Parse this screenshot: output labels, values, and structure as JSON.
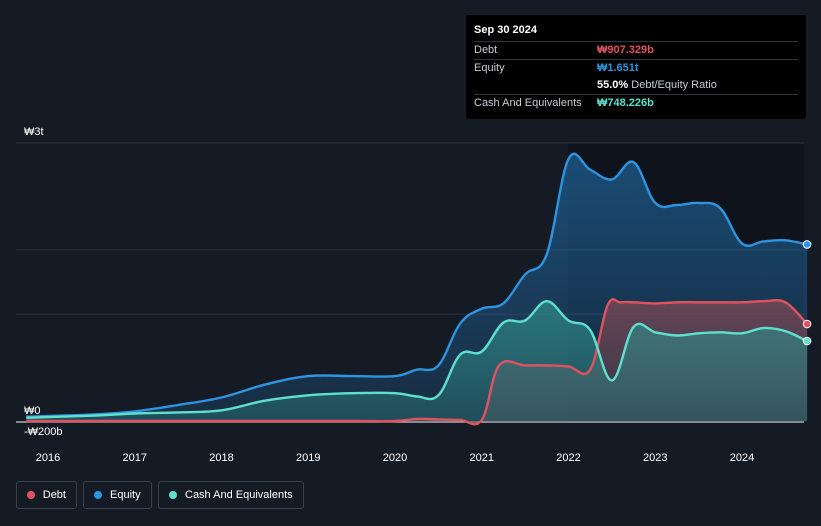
{
  "colors": {
    "debt": "#e0525e",
    "equity": "#2c94e0",
    "cash": "#5fe0cf",
    "grid": "#2f3540",
    "plot_bg": "#0f141c"
  },
  "tooltip": {
    "date": "Sep 30 2024",
    "debt_label": "Debt",
    "debt_value": "₩907.329b",
    "equity_label": "Equity",
    "equity_value": "₩1.651t",
    "ratio_value": "55.0%",
    "ratio_label": "Debt/Equity Ratio",
    "cash_label": "Cash And Equivalents",
    "cash_value": "₩748.226b"
  },
  "legend": [
    {
      "label": "Debt",
      "color": "#e0525e"
    },
    {
      "label": "Equity",
      "color": "#2c94e0"
    },
    {
      "label": "Cash And Equivalents",
      "color": "#5fe0cf"
    }
  ],
  "chart_data": {
    "type": "area",
    "title": "",
    "xlabel": "",
    "ylabel": "",
    "unit": "₩b",
    "ylim": [
      -200,
      2600
    ],
    "y_tick_labels": [
      {
        "value": 2600,
        "label": "₩3t"
      },
      {
        "value": 0,
        "label": "₩0"
      },
      {
        "value": -200,
        "label": "-₩200b"
      }
    ],
    "x_ticks": [
      "2016",
      "2017",
      "2018",
      "2019",
      "2020",
      "2021",
      "2022",
      "2023",
      "2024"
    ],
    "x_tick_values": [
      2016,
      2017,
      2018,
      2019,
      2020,
      2021,
      2022,
      2023,
      2024
    ],
    "grid": true,
    "series": [
      {
        "name": "Debt",
        "color": "#e0525e",
        "x": [
          2015.75,
          2016.5,
          2017.5,
          2018.5,
          2019.5,
          2020.0,
          2020.25,
          2020.5,
          2020.75,
          2021.0,
          2021.2,
          2021.5,
          2021.75,
          2022.0,
          2022.25,
          2022.45,
          2022.6,
          2022.75,
          2023.0,
          2023.25,
          2023.5,
          2023.75,
          2024.0,
          2024.25,
          2024.5,
          2024.75
        ],
        "values": [
          0,
          0,
          0,
          0,
          0,
          0,
          20,
          15,
          10,
          10,
          520,
          520,
          520,
          510,
          480,
          1080,
          1110,
          1110,
          1100,
          1110,
          1110,
          1110,
          1110,
          1120,
          1110,
          907
        ]
      },
      {
        "name": "Equity",
        "color": "#2c94e0",
        "x": [
          2015.75,
          2016.5,
          2017.0,
          2017.5,
          2018.0,
          2018.5,
          2019.0,
          2019.5,
          2020.0,
          2020.25,
          2020.5,
          2020.75,
          2021.0,
          2021.25,
          2021.5,
          2021.75,
          2022.0,
          2022.25,
          2022.5,
          2022.75,
          2023.0,
          2023.25,
          2023.5,
          2023.75,
          2024.0,
          2024.25,
          2024.5,
          2024.75
        ],
        "values": [
          40,
          60,
          90,
          150,
          220,
          340,
          420,
          420,
          420,
          480,
          520,
          910,
          1050,
          1100,
          1370,
          1560,
          2450,
          2350,
          2260,
          2420,
          2040,
          2020,
          2040,
          1990,
          1660,
          1680,
          1690,
          1651
        ]
      },
      {
        "name": "Cash And Equivalents",
        "color": "#5fe0cf",
        "x": [
          2015.75,
          2016.5,
          2017.0,
          2017.5,
          2018.0,
          2018.5,
          2019.0,
          2019.5,
          2020.0,
          2020.25,
          2020.5,
          2020.75,
          2021.0,
          2021.25,
          2021.5,
          2021.75,
          2022.0,
          2022.25,
          2022.5,
          2022.75,
          2023.0,
          2023.25,
          2023.5,
          2023.75,
          2024.0,
          2024.25,
          2024.5,
          2024.75
        ],
        "values": [
          30,
          50,
          70,
          80,
          100,
          190,
          240,
          260,
          260,
          230,
          240,
          620,
          650,
          920,
          940,
          1120,
          940,
          850,
          380,
          880,
          830,
          800,
          820,
          830,
          820,
          870,
          840,
          748
        ]
      }
    ]
  }
}
